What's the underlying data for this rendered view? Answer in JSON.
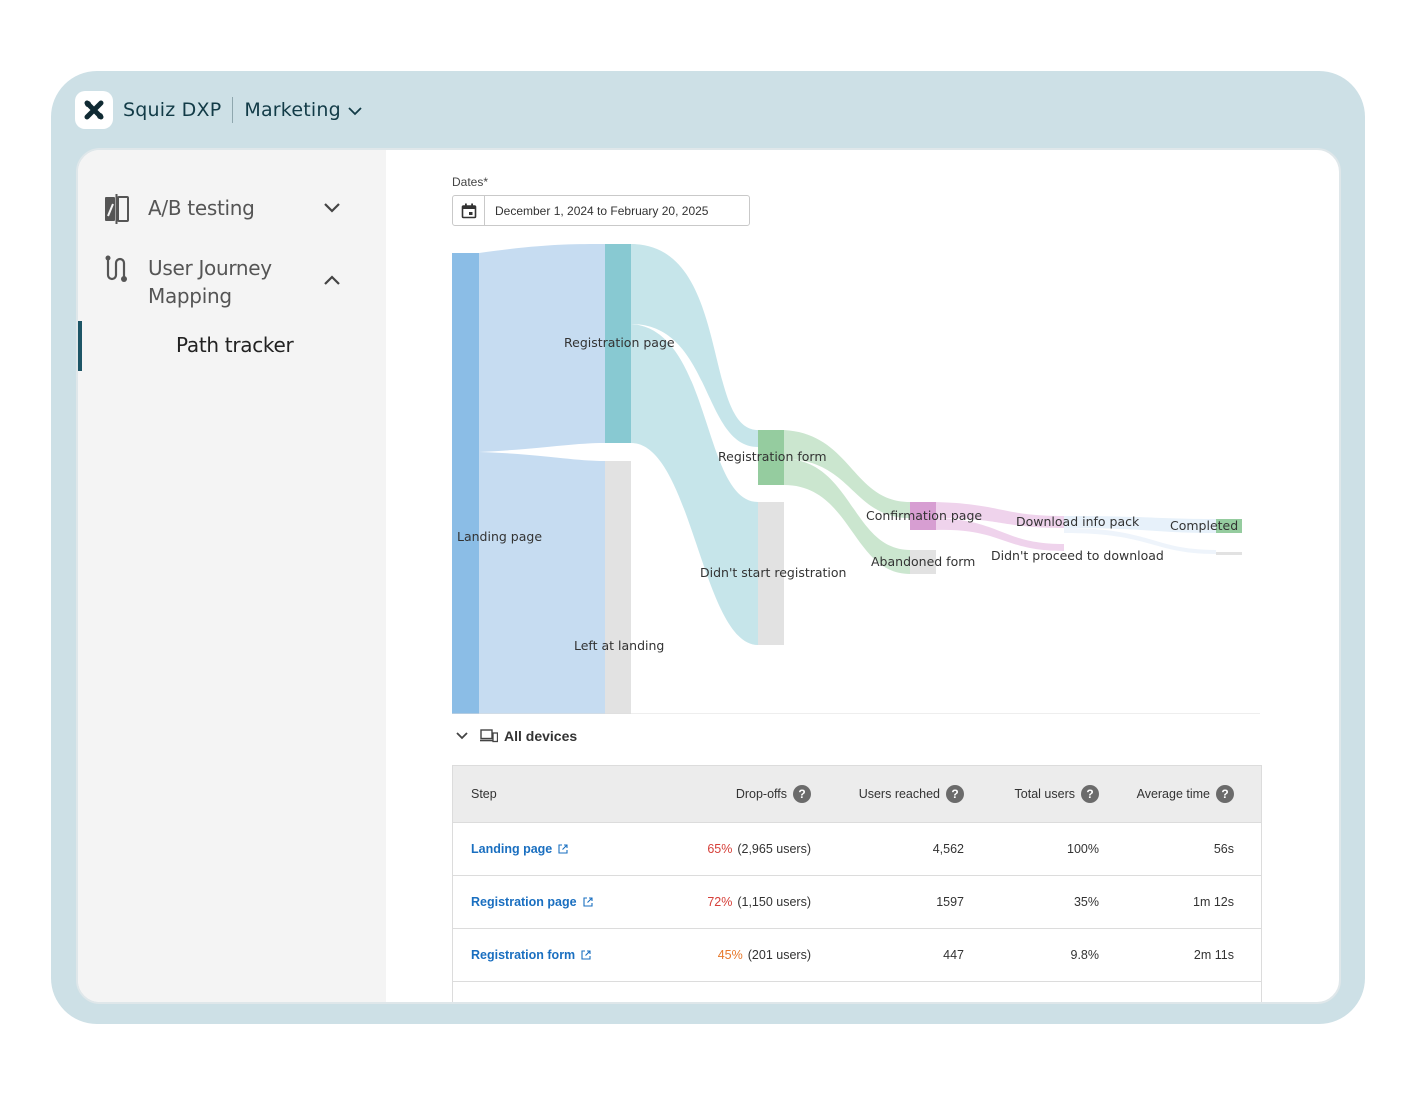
{
  "app": {
    "brand": "Squiz DXP",
    "workspace": "Marketing",
    "logo_icon": "squiz-x-logo",
    "accent": "#1d5566"
  },
  "sidebar": {
    "items": [
      {
        "label": "A/B testing",
        "icon": "split-page-icon",
        "expanded": false
      },
      {
        "label": "User Journey Mapping",
        "icon": "journey-path-icon",
        "expanded": true
      }
    ],
    "sub_items": [
      {
        "label": "Path tracker",
        "active": true
      }
    ]
  },
  "filters": {
    "dates_label": "Dates*",
    "date_range": "December 1, 2024 to February 20, 2025"
  },
  "sankey": {
    "colors": {
      "landing": "#8bbde6",
      "registration_page": "#88c9d2",
      "registration_form": "#95cc9f",
      "confirmation_page": "#d79ed2",
      "completed": "#95cc9f",
      "dropoff": "#e2e2e2"
    },
    "nodes": [
      {
        "id": "landing",
        "label": "Landing page"
      },
      {
        "id": "registration_page",
        "label": "Registration page"
      },
      {
        "id": "left_landing",
        "label": "Left at landing"
      },
      {
        "id": "registration_form",
        "label": "Registration form"
      },
      {
        "id": "didnt_start",
        "label": "Didn't start registration"
      },
      {
        "id": "confirmation_page",
        "label": "Confirmation page"
      },
      {
        "id": "abandoned_form",
        "label": "Abandoned form"
      },
      {
        "id": "download_pack",
        "label": "Download info pack"
      },
      {
        "id": "didnt_download",
        "label": "Didn't proceed to download"
      },
      {
        "id": "completed",
        "label": "Completed"
      }
    ]
  },
  "devices": {
    "label": "All devices",
    "icon": "devices-icon"
  },
  "table": {
    "headers": {
      "step": "Step",
      "dropoffs": "Drop-offs",
      "users_reached": "Users reached",
      "total_users": "Total users",
      "average_time": "Average time"
    },
    "rows": [
      {
        "step": "Landing page",
        "drop_pct": "65%",
        "drop_users": "(2,965 users)",
        "users_reached": "4,562",
        "total_users": "100%",
        "average_time": "56s"
      },
      {
        "step": "Registration page",
        "drop_pct": "72%",
        "drop_users": "(1,150 users)",
        "users_reached": "1597",
        "total_users": "35%",
        "average_time": "1m 12s"
      },
      {
        "step": "Registration form",
        "drop_pct": "45%",
        "drop_users": "(201 users)",
        "users_reached": "447",
        "total_users": "9.8%",
        "average_time": "2m 11s"
      }
    ]
  }
}
